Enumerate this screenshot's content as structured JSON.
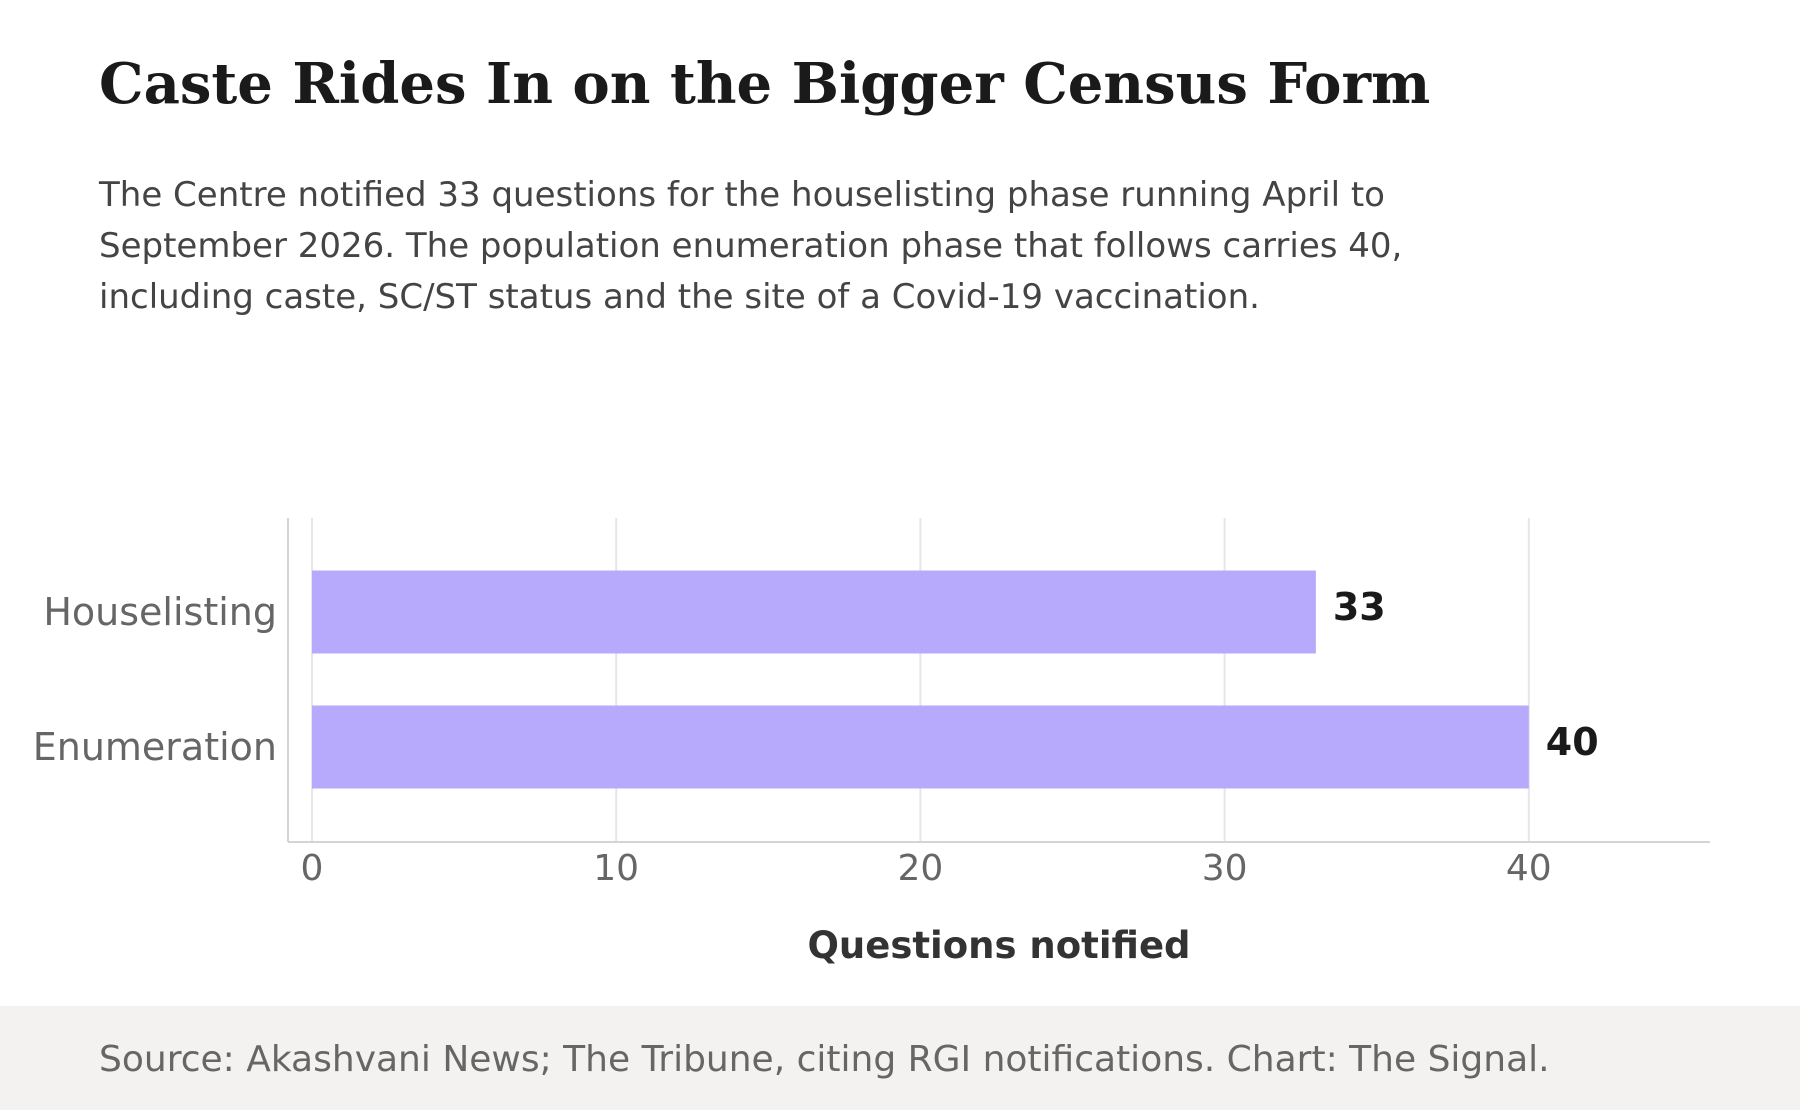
{
  "header": {
    "title": "Caste Rides In on the Bigger Census Form",
    "subtitle": "The Centre notified 33 questions for the houselisting phase running April to September 2026. The population enumeration phase that follows carries 40, including caste, SC/ST status and the site of a Covid-19 vaccination."
  },
  "chart_data": {
    "type": "bar",
    "orientation": "horizontal",
    "categories": [
      "Houselisting",
      "Enumeration"
    ],
    "values": [
      33,
      40
    ],
    "data_labels": [
      "33",
      "40"
    ],
    "xlabel": "Questions notified",
    "ylabel": "",
    "xlim": [
      0,
      46
    ],
    "xticks": [
      0,
      10,
      20,
      30,
      40
    ],
    "xtick_labels": [
      "0",
      "10",
      "20",
      "30",
      "40"
    ],
    "grid": "vertical",
    "legend": "none",
    "bar_color": "#b7a9fc"
  },
  "footer": {
    "source": "Source: Akashvani News; The Tribune, citing RGI notifications. Chart: The Signal."
  }
}
